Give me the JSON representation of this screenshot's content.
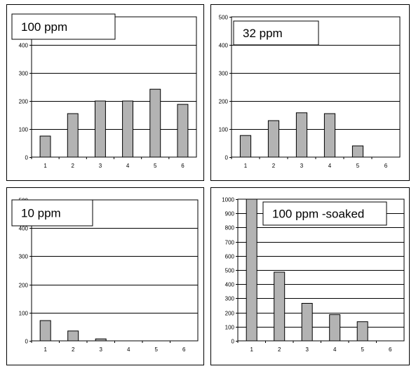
{
  "chart_data": [
    {
      "type": "bar",
      "title": "100 ppm",
      "categories": [
        "1",
        "2",
        "3",
        "4",
        "5",
        "6"
      ],
      "values": [
        75,
        155,
        200,
        200,
        242,
        188
      ],
      "ylim": [
        0,
        500
      ],
      "yticks": [
        0,
        100,
        200,
        300,
        400,
        500
      ],
      "grid": true,
      "bar_color": "#b3b3b3"
    },
    {
      "type": "bar",
      "title": "32 ppm",
      "categories": [
        "1",
        "2",
        "3",
        "4",
        "5",
        "6"
      ],
      "values": [
        77,
        130,
        158,
        155,
        40,
        0
      ],
      "ylim": [
        0,
        500
      ],
      "yticks": [
        0,
        100,
        200,
        300,
        400,
        500
      ],
      "grid": true,
      "bar_color": "#b3b3b3"
    },
    {
      "type": "bar",
      "title": "10 ppm",
      "categories": [
        "1",
        "2",
        "3",
        "4",
        "5",
        "6"
      ],
      "values": [
        72,
        35,
        7,
        0,
        0,
        0
      ],
      "ylim": [
        0,
        500
      ],
      "yticks": [
        0,
        100,
        200,
        300,
        400,
        500
      ],
      "grid": true,
      "bar_color": "#b3b3b3"
    },
    {
      "type": "bar",
      "title": "100 ppm -soaked",
      "categories": [
        "1",
        "2",
        "3",
        "4",
        "5",
        "6"
      ],
      "values": [
        1000,
        485,
        265,
        185,
        135,
        0
      ],
      "ylim": [
        0,
        1000
      ],
      "yticks": [
        0,
        100,
        200,
        300,
        400,
        500,
        600,
        700,
        800,
        900,
        1000
      ],
      "grid": true,
      "bar_color": "#b3b3b3"
    }
  ]
}
